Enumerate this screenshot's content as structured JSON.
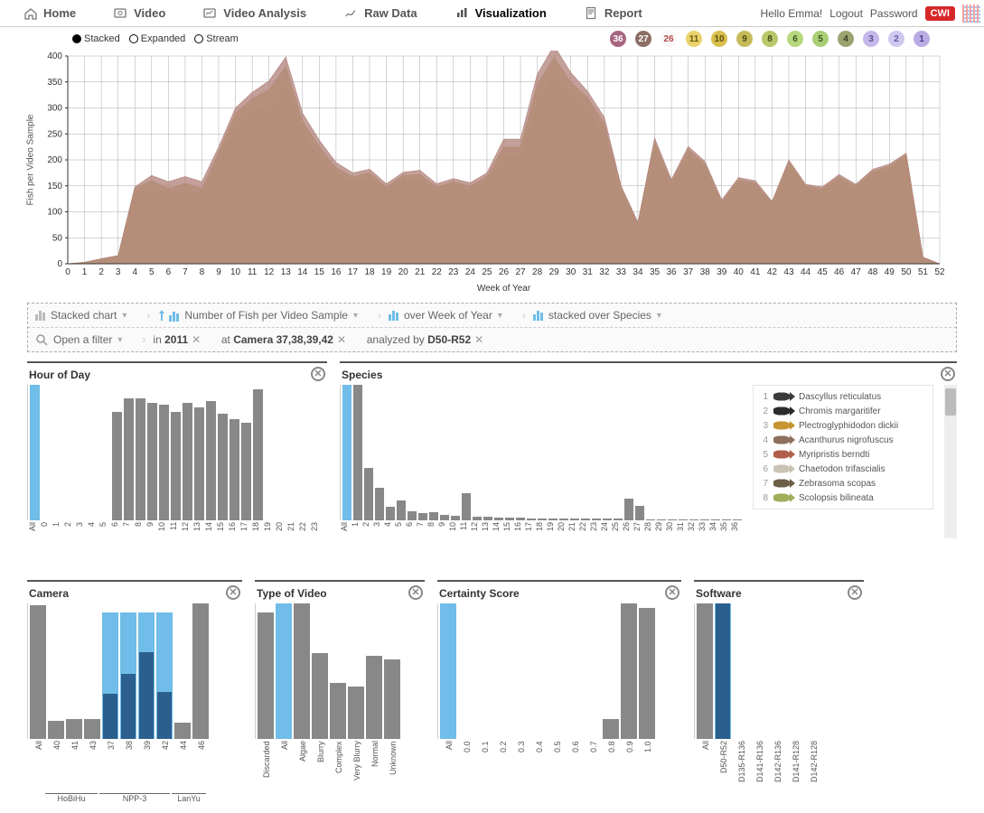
{
  "nav": {
    "items": [
      {
        "label": "Home",
        "icon": "home"
      },
      {
        "label": "Video",
        "icon": "video"
      },
      {
        "label": "Video Analysis",
        "icon": "analysis"
      },
      {
        "label": "Raw Data",
        "icon": "raw"
      },
      {
        "label": "Visualization",
        "icon": "viz",
        "active": true
      },
      {
        "label": "Report",
        "icon": "report"
      }
    ],
    "greeting": "Hello Emma!",
    "links": [
      "Logout",
      "Password"
    ],
    "badge": "CWI"
  },
  "mode_legend": {
    "items": [
      "Stacked",
      "Expanded",
      "Stream"
    ],
    "selected": "Stacked"
  },
  "chips": [
    {
      "n": "36",
      "bg": "#a7657f",
      "fg": "#fff"
    },
    {
      "n": "27",
      "bg": "#8c6f67",
      "fg": "#fff"
    },
    {
      "n": "26",
      "bg": "#f8f8f8",
      "fg": "#b24a4a"
    },
    {
      "n": "11",
      "bg": "#e9d26a",
      "fg": "#6b5a12"
    },
    {
      "n": "10",
      "bg": "#d8be4b",
      "fg": "#5c4d0e"
    },
    {
      "n": "9",
      "bg": "#c6bb5a",
      "fg": "#4f4a12"
    },
    {
      "n": "8",
      "bg": "#b8c76a",
      "fg": "#3f4a16"
    },
    {
      "n": "6",
      "bg": "#b7d87e",
      "fg": "#3e5720"
    },
    {
      "n": "5",
      "bg": "#a9cf75",
      "fg": "#3c5022"
    },
    {
      "n": "4",
      "bg": "#9aa470",
      "fg": "#3b3f25"
    },
    {
      "n": "3",
      "bg": "#c4b8e8",
      "fg": "#5a4e95"
    },
    {
      "n": "2",
      "bg": "#cfc7ef",
      "fg": "#6558a3"
    },
    {
      "n": "1",
      "bg": "#b9abe4",
      "fg": "#4a3d87"
    }
  ],
  "main_chart": {
    "type": "stacked-area",
    "ylabel": "Fish per Video Sample",
    "xlabel": "Week of Year",
    "ylim": [
      0,
      400
    ],
    "ytick": 50,
    "xmin": 0,
    "xmax": 52,
    "background": "#ffffff",
    "grid_color": "#bbbbbb",
    "layers": [
      {
        "color": "#8b8bc4",
        "opacity": 0.85,
        "values": [
          0,
          2,
          5,
          10,
          125,
          120,
          110,
          115,
          108,
          170,
          220,
          245,
          230,
          245,
          180,
          155,
          135,
          130,
          135,
          115,
          130,
          130,
          115,
          120,
          115,
          125,
          155,
          150,
          225,
          260,
          250,
          240,
          185,
          105,
          60,
          190,
          130,
          180,
          160,
          100,
          135,
          130,
          100,
          175,
          130,
          130,
          150,
          135,
          160,
          165,
          190,
          5,
          0
        ]
      },
      {
        "color": "#c4c3e6",
        "opacity": 0.8,
        "values": [
          0,
          2,
          6,
          12,
          130,
          128,
          120,
          122,
          118,
          178,
          228,
          252,
          240,
          258,
          200,
          170,
          148,
          142,
          148,
          126,
          145,
          148,
          128,
          135,
          130,
          142,
          178,
          172,
          258,
          300,
          278,
          262,
          212,
          120,
          68,
          205,
          140,
          195,
          172,
          108,
          145,
          140,
          108,
          183,
          138,
          135,
          156,
          140,
          165,
          175,
          198,
          8,
          0
        ]
      },
      {
        "color": "#d6dba3",
        "opacity": 0.85,
        "values": [
          0,
          3,
          8,
          14,
          140,
          145,
          132,
          140,
          132,
          200,
          265,
          295,
          300,
          345,
          250,
          205,
          172,
          158,
          165,
          140,
          160,
          162,
          140,
          150,
          142,
          158,
          205,
          205,
          310,
          365,
          322,
          298,
          248,
          135,
          74,
          222,
          150,
          210,
          184,
          115,
          155,
          150,
          113,
          190,
          145,
          140,
          162,
          145,
          172,
          182,
          205,
          10,
          0
        ]
      },
      {
        "color": "#bcae6a",
        "opacity": 0.8,
        "values": [
          0,
          3,
          9,
          15,
          145,
          160,
          145,
          155,
          145,
          215,
          290,
          318,
          335,
          380,
          275,
          225,
          185,
          168,
          175,
          148,
          170,
          172,
          148,
          158,
          150,
          168,
          225,
          225,
          345,
          398,
          350,
          320,
          270,
          145,
          78,
          235,
          158,
          220,
          192,
          120,
          162,
          156,
          118,
          196,
          150,
          145,
          168,
          150,
          178,
          188,
          210,
          12,
          0
        ]
      },
      {
        "color": "#b08079",
        "opacity": 0.75,
        "values": [
          0,
          3,
          10,
          16,
          148,
          170,
          158,
          168,
          158,
          225,
          300,
          330,
          352,
          398,
          290,
          238,
          195,
          175,
          182,
          154,
          176,
          180,
          154,
          164,
          156,
          175,
          240,
          240,
          365,
          420,
          368,
          332,
          282,
          150,
          80,
          242,
          162,
          226,
          197,
          123,
          166,
          160,
          120,
          200,
          153,
          148,
          172,
          153,
          182,
          192,
          213,
          13,
          0
        ]
      }
    ]
  },
  "controls": {
    "row1": [
      {
        "icon": "bars-gray",
        "text": "Stacked chart"
      },
      {
        "icon": "bars-up",
        "text": "Number of Fish per Video Sample"
      },
      {
        "icon": "bars",
        "text": "over Week of Year"
      },
      {
        "icon": "bars",
        "text": "stacked over Species"
      }
    ],
    "row2": {
      "open_filter": "Open a filter",
      "pills": [
        {
          "pre": "in ",
          "b": "2011"
        },
        {
          "pre": "at ",
          "b": "Camera 37,38,39,42"
        },
        {
          "pre": "analyzed by ",
          "b": "D50-R52"
        }
      ]
    }
  },
  "facets": {
    "hour": {
      "title": "Hour of Day",
      "labels": [
        "All",
        "0",
        "1",
        "2",
        "3",
        "4",
        "5",
        "6",
        "7",
        "8",
        "9",
        "10",
        "11",
        "12",
        "13",
        "14",
        "15",
        "16",
        "17",
        "18",
        "19",
        "20",
        "21",
        "22",
        "23"
      ],
      "values": [
        150,
        0,
        0,
        0,
        0,
        0,
        0,
        120,
        135,
        135,
        130,
        128,
        120,
        130,
        125,
        132,
        118,
        112,
        108,
        145,
        0,
        0,
        0,
        0,
        0
      ],
      "selected": [
        0
      ],
      "max": 150
    },
    "species": {
      "title": "Species",
      "labels": [
        "All",
        "1",
        "2",
        "3",
        "4",
        "5",
        "6",
        "7",
        "8",
        "9",
        "10",
        "11",
        "12",
        "13",
        "14",
        "15",
        "16",
        "17",
        "18",
        "19",
        "20",
        "21",
        "22",
        "23",
        "24",
        "25",
        "26",
        "27",
        "28",
        "29",
        "30",
        "31",
        "32",
        "33",
        "34",
        "35",
        "36"
      ],
      "values": [
        150,
        150,
        58,
        36,
        15,
        22,
        10,
        8,
        9,
        6,
        5,
        30,
        4,
        4,
        3,
        3,
        3,
        2,
        2,
        2,
        2,
        2,
        2,
        2,
        2,
        2,
        24,
        16,
        1,
        1,
        1,
        1,
        1,
        1,
        1,
        1,
        1
      ],
      "selected": [
        0
      ],
      "max": 150,
      "legend": [
        {
          "n": 1,
          "name": "Dascyllus reticulatus",
          "color": "#3b3b3b"
        },
        {
          "n": 2,
          "name": "Chromis margaritifer",
          "color": "#2b2b2b"
        },
        {
          "n": 3,
          "name": "Plectroglyphidodon dickii",
          "color": "#c7952f"
        },
        {
          "n": 4,
          "name": "Acanthurus nigrofuscus",
          "color": "#8c6f5e"
        },
        {
          "n": 5,
          "name": "Myripristis berndti",
          "color": "#b0604a"
        },
        {
          "n": 6,
          "name": "Chaetodon trifascialis",
          "color": "#c8c3b4"
        },
        {
          "n": 7,
          "name": "Zebrasoma scopas",
          "color": "#6c5f46"
        },
        {
          "n": 8,
          "name": "Scolopsis bilineata",
          "color": "#9fae5a"
        }
      ]
    },
    "camera": {
      "title": "Camera",
      "labels": [
        "All",
        "40",
        "41",
        "43",
        "37",
        "38",
        "39",
        "42",
        "44",
        "46"
      ],
      "values": [
        148,
        20,
        22,
        22,
        140,
        140,
        140,
        140,
        18,
        150
      ],
      "inner": [
        0,
        0,
        0,
        0,
        50,
        72,
        96,
        52,
        0,
        0
      ],
      "selected": [
        4,
        5,
        6,
        7
      ],
      "max": 150,
      "groups": [
        {
          "label": "HoBiHu",
          "from": 1,
          "to": 3
        },
        {
          "label": "NPP-3",
          "from": 4,
          "to": 7
        },
        {
          "label": "LanYu",
          "from": 8,
          "to": 9
        }
      ]
    },
    "video": {
      "title": "Type of Video",
      "labels": [
        "Discarded",
        "All",
        "Algae",
        "Blurry",
        "Complex",
        "Very Blurry",
        "Normal",
        "Unknown"
      ],
      "values": [
        140,
        150,
        150,
        95,
        62,
        58,
        92,
        88
      ],
      "selected": [
        1
      ],
      "max": 150
    },
    "certainty": {
      "title": "Certainty Score",
      "labels": [
        "All",
        "0.0",
        "0.1",
        "0.2",
        "0.3",
        "0.4",
        "0.5",
        "0.6",
        "0.7",
        "0.8",
        "0.9",
        "1.0"
      ],
      "values": [
        150,
        0,
        0,
        0,
        0,
        0,
        0,
        0,
        0,
        22,
        150,
        145
      ],
      "selected": [
        0
      ],
      "max": 150
    },
    "software": {
      "title": "Software",
      "labels": [
        "All",
        "D50-R52",
        "D135-R136",
        "D141-R136",
        "D142-R136",
        "D141-R128",
        "D142-R128"
      ],
      "values": [
        150,
        150,
        0,
        0,
        0,
        0,
        0
      ],
      "inner": [
        0,
        150,
        0,
        0,
        0,
        0,
        0
      ],
      "selected": [
        1
      ],
      "max": 150
    }
  }
}
